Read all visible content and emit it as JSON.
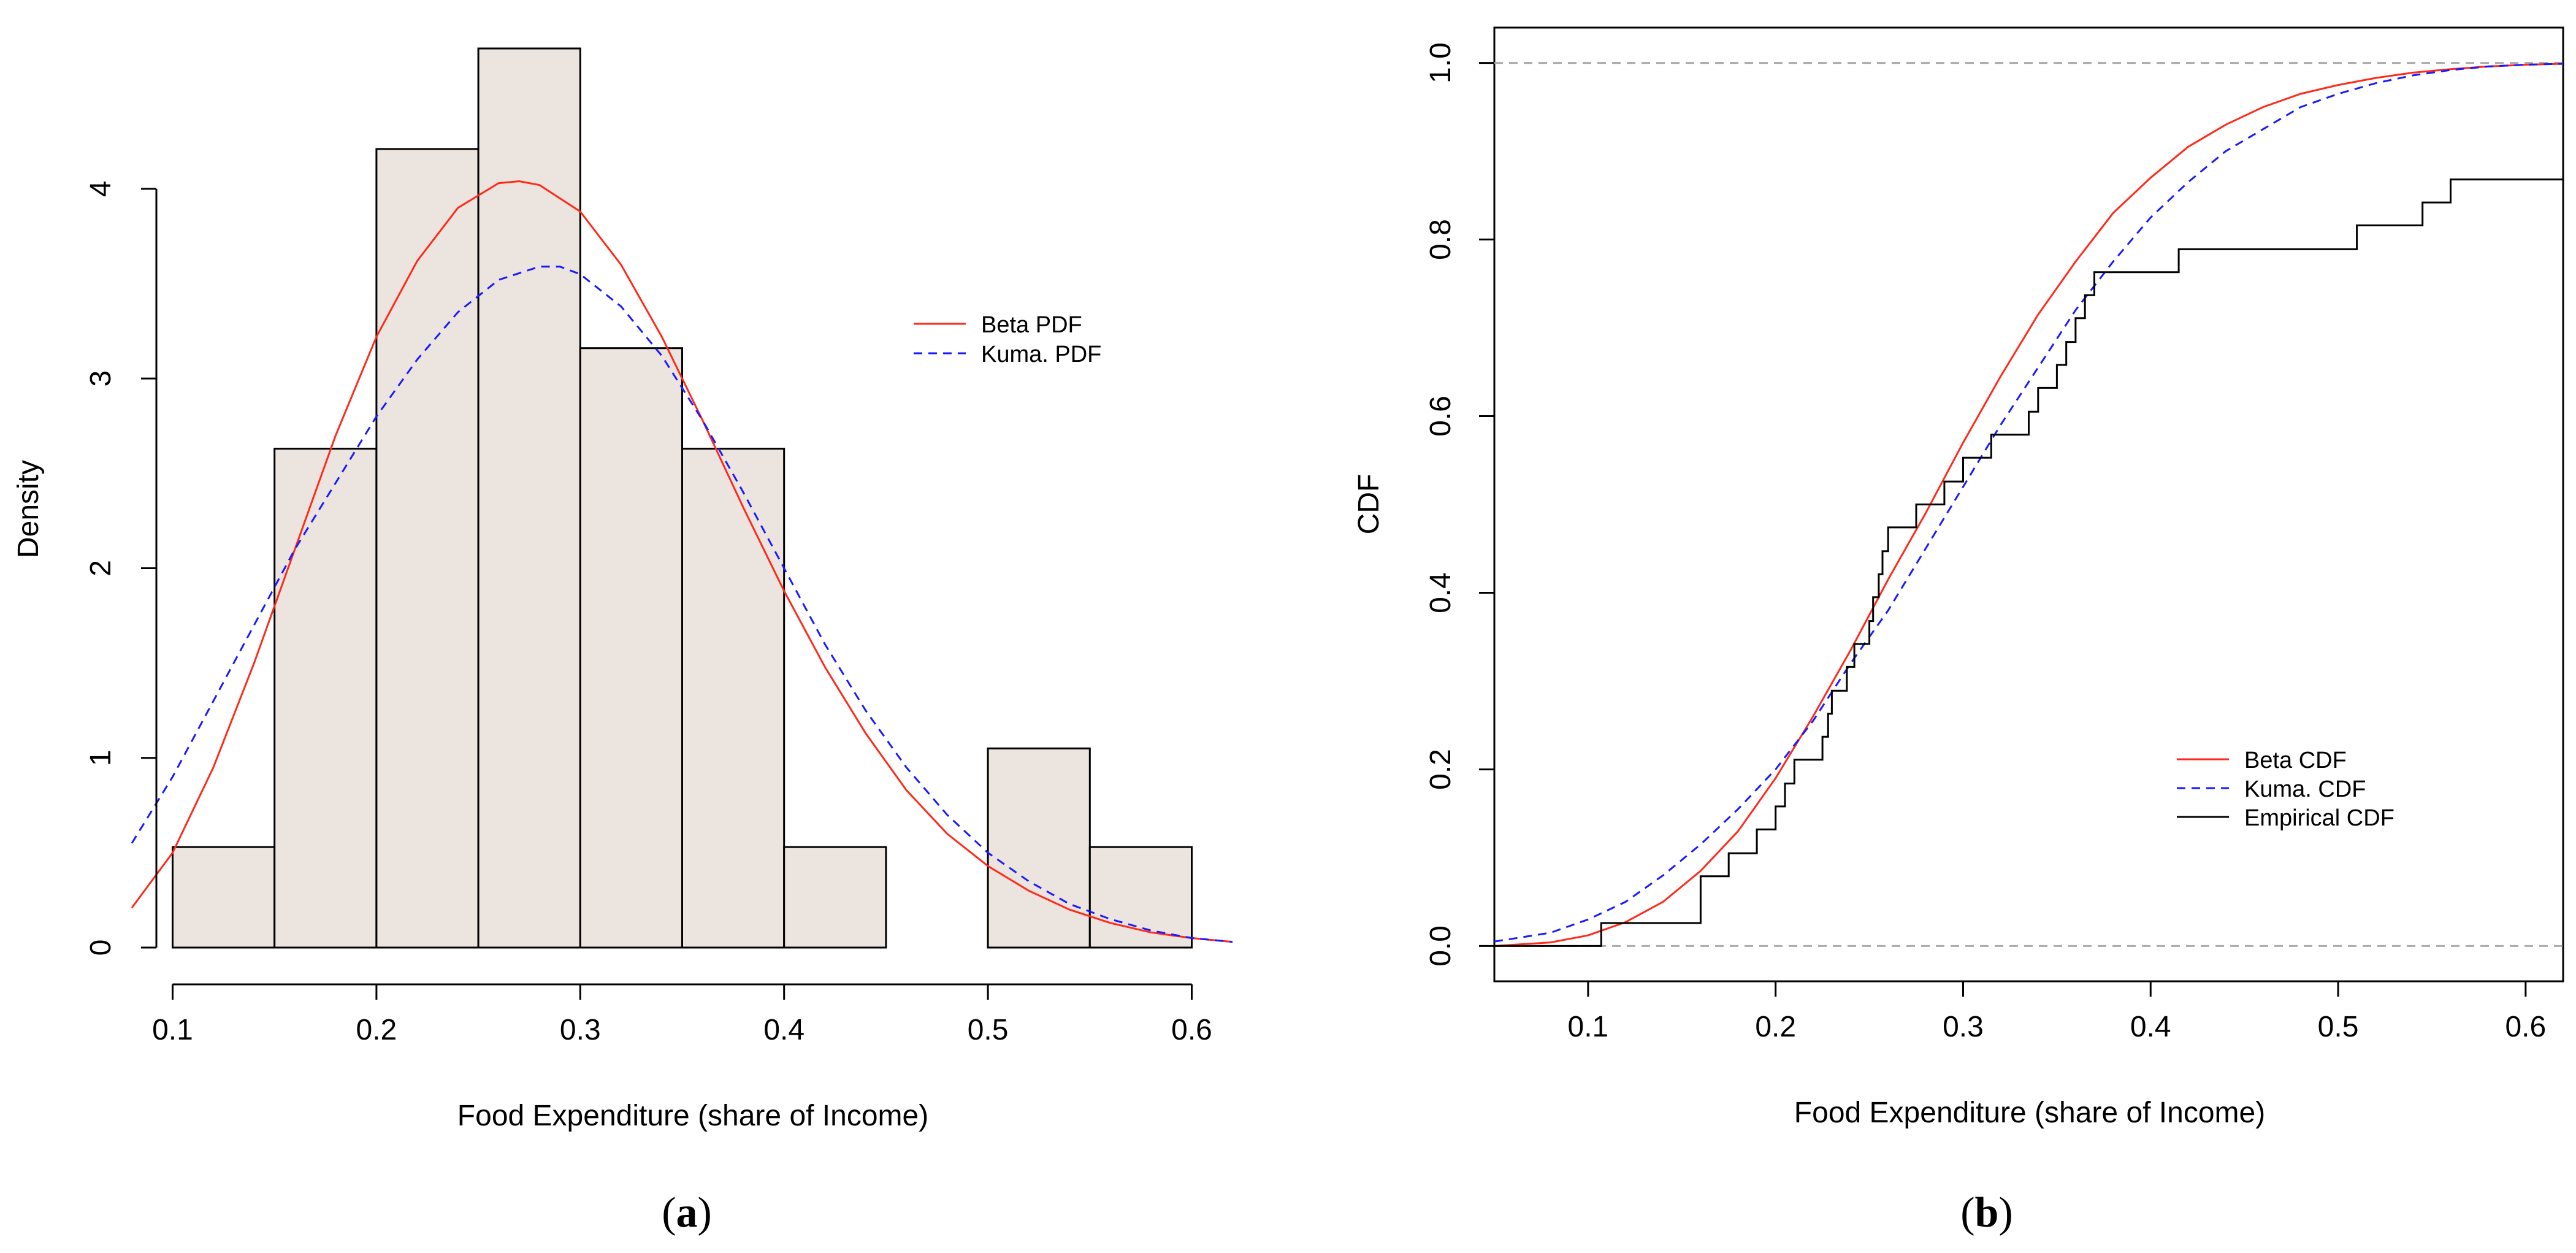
{
  "chart_data": [
    {
      "type": "histogram",
      "panel_label": "a",
      "xlabel": "Food Expenditure (share of Income)",
      "ylabel": "Density",
      "xlim": [
        0.08,
        0.62
      ],
      "ylim": [
        0,
        4.85
      ],
      "xticks": [
        "0.1",
        "0.2",
        "0.3",
        "0.4",
        "0.5",
        "0.6"
      ],
      "yticks": [
        "0",
        "1",
        "2",
        "3",
        "4"
      ],
      "bar_fill": "#ece4de",
      "bins": [
        {
          "from": 0.1,
          "to": 0.15,
          "density": 0.53
        },
        {
          "from": 0.15,
          "to": 0.2,
          "density": 2.63
        },
        {
          "from": 0.2,
          "to": 0.25,
          "density": 4.21
        },
        {
          "from": 0.25,
          "to": 0.3,
          "density": 4.74
        },
        {
          "from": 0.3,
          "to": 0.35,
          "density": 3.16
        },
        {
          "from": 0.35,
          "to": 0.4,
          "density": 2.63
        },
        {
          "from": 0.4,
          "to": 0.45,
          "density": 0.53
        },
        {
          "from": 0.45,
          "to": 0.5,
          "density": 0
        },
        {
          "from": 0.5,
          "to": 0.55,
          "density": 1.05
        },
        {
          "from": 0.55,
          "to": 0.6,
          "density": 0.53
        }
      ],
      "series": [
        {
          "name": "Beta PDF",
          "color": "#ff2a1a",
          "dash": "solid",
          "x": [
            0.08,
            0.1,
            0.12,
            0.14,
            0.16,
            0.18,
            0.2,
            0.22,
            0.24,
            0.26,
            0.27,
            0.28,
            0.3,
            0.32,
            0.34,
            0.36,
            0.38,
            0.4,
            0.42,
            0.44,
            0.46,
            0.48,
            0.5,
            0.52,
            0.54,
            0.56,
            0.58,
            0.6,
            0.62
          ],
          "y": [
            0.21,
            0.5,
            0.95,
            1.5,
            2.1,
            2.7,
            3.22,
            3.62,
            3.9,
            4.03,
            4.04,
            4.02,
            3.88,
            3.6,
            3.22,
            2.78,
            2.32,
            1.88,
            1.48,
            1.13,
            0.83,
            0.6,
            0.43,
            0.3,
            0.2,
            0.13,
            0.08,
            0.05,
            0.03
          ]
        },
        {
          "name": "Kuma. PDF",
          "color": "#1a1aff",
          "dash": "dashed",
          "x": [
            0.08,
            0.1,
            0.12,
            0.14,
            0.16,
            0.18,
            0.2,
            0.22,
            0.24,
            0.26,
            0.28,
            0.29,
            0.3,
            0.32,
            0.34,
            0.36,
            0.38,
            0.4,
            0.42,
            0.44,
            0.46,
            0.48,
            0.5,
            0.52,
            0.54,
            0.56,
            0.58,
            0.6,
            0.62
          ],
          "y": [
            0.55,
            0.9,
            1.3,
            1.7,
            2.1,
            2.45,
            2.8,
            3.1,
            3.35,
            3.52,
            3.59,
            3.59,
            3.55,
            3.38,
            3.12,
            2.78,
            2.4,
            2.0,
            1.6,
            1.25,
            0.95,
            0.7,
            0.5,
            0.35,
            0.23,
            0.15,
            0.09,
            0.05,
            0.03
          ]
        }
      ],
      "legend": {
        "position": "right",
        "entries": [
          "Beta PDF",
          "Kuma. PDF"
        ]
      }
    },
    {
      "type": "line",
      "panel_label": "b",
      "xlabel": "Food Expenditure (share of Income)",
      "ylabel": "CDF",
      "xlim": [
        0.05,
        0.62
      ],
      "ylim": [
        -0.04,
        1.04
      ],
      "xticks": [
        "0.1",
        "0.2",
        "0.3",
        "0.4",
        "0.5",
        "0.6"
      ],
      "yticks": [
        "0.0",
        "0.2",
        "0.4",
        "0.6",
        "0.8",
        "1.0"
      ],
      "reference_lines": [
        0,
        1
      ],
      "series": [
        {
          "name": "Beta CDF",
          "color": "#ff2a1a",
          "dash": "solid",
          "x": [
            0.05,
            0.08,
            0.1,
            0.12,
            0.14,
            0.16,
            0.18,
            0.2,
            0.22,
            0.24,
            0.26,
            0.28,
            0.3,
            0.32,
            0.34,
            0.36,
            0.38,
            0.4,
            0.42,
            0.44,
            0.46,
            0.48,
            0.5,
            0.52,
            0.54,
            0.56,
            0.58,
            0.6,
            0.62
          ],
          "y": [
            0.0,
            0.004,
            0.012,
            0.027,
            0.05,
            0.085,
            0.13,
            0.19,
            0.26,
            0.335,
            0.415,
            0.49,
            0.57,
            0.645,
            0.715,
            0.775,
            0.83,
            0.87,
            0.905,
            0.93,
            0.95,
            0.965,
            0.975,
            0.983,
            0.989,
            0.993,
            0.996,
            0.998,
            0.999
          ]
        },
        {
          "name": "Kuma. CDF",
          "color": "#1a1aff",
          "dash": "dashed",
          "x": [
            0.05,
            0.08,
            0.1,
            0.12,
            0.14,
            0.16,
            0.18,
            0.2,
            0.22,
            0.24,
            0.26,
            0.28,
            0.3,
            0.32,
            0.34,
            0.36,
            0.38,
            0.4,
            0.42,
            0.44,
            0.46,
            0.48,
            0.5,
            0.52,
            0.54,
            0.56,
            0.58,
            0.6,
            0.62
          ],
          "y": [
            0.005,
            0.015,
            0.03,
            0.05,
            0.08,
            0.115,
            0.155,
            0.2,
            0.255,
            0.32,
            0.38,
            0.45,
            0.52,
            0.59,
            0.655,
            0.72,
            0.775,
            0.825,
            0.865,
            0.9,
            0.925,
            0.95,
            0.965,
            0.977,
            0.986,
            0.992,
            0.996,
            0.998,
            0.999
          ]
        },
        {
          "name": "Empirical CDF",
          "color": "#000000",
          "dash": "step",
          "x": [
            0.05,
            0.107,
            0.16,
            0.175,
            0.19,
            0.2,
            0.205,
            0.21,
            0.225,
            0.228,
            0.23,
            0.238,
            0.242,
            0.25,
            0.252,
            0.255,
            0.257,
            0.26,
            0.275,
            0.29,
            0.3,
            0.315,
            0.335,
            0.34,
            0.35,
            0.355,
            0.36,
            0.365,
            0.37,
            0.415,
            0.51,
            0.545,
            0.56,
            0.62
          ],
          "y": [
            0.0,
            0.026,
            0.079,
            0.105,
            0.132,
            0.158,
            0.184,
            0.211,
            0.237,
            0.263,
            0.289,
            0.316,
            0.342,
            0.368,
            0.395,
            0.421,
            0.447,
            0.474,
            0.5,
            0.526,
            0.553,
            0.579,
            0.605,
            0.632,
            0.658,
            0.684,
            0.711,
            0.737,
            0.763,
            0.789,
            0.816,
            0.842,
            0.868,
            0.895
          ]
        }
      ],
      "legend": {
        "position": "bottom-right",
        "entries": [
          "Beta CDF",
          "Kuma. CDF",
          "Empirical CDF"
        ]
      }
    }
  ]
}
